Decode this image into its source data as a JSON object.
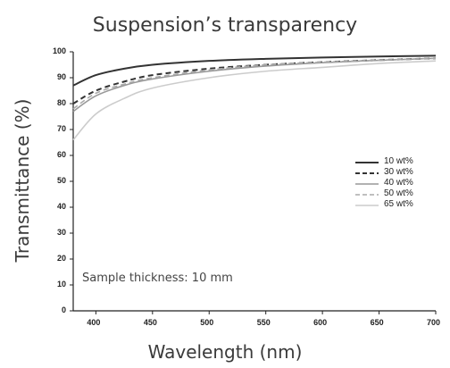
{
  "chart_data": {
    "type": "line",
    "title": "Suspension’s transparency",
    "xlabel": "Wavelength (nm)",
    "ylabel": "Transmittance (%)",
    "annotation": "Sample thickness: 10 mm",
    "xlim": [
      380,
      700
    ],
    "ylim": [
      0,
      100
    ],
    "xticks": [
      400,
      450,
      500,
      550,
      600,
      650,
      700
    ],
    "yticks": [
      0,
      10,
      20,
      30,
      40,
      50,
      60,
      70,
      80,
      90,
      100
    ],
    "ytick_labels": [
      "0",
      "10",
      "20",
      "30",
      "40",
      "50",
      "60",
      "70",
      "80",
      "90",
      "100"
    ],
    "legend_position": "right",
    "x": [
      380,
      400,
      425,
      450,
      500,
      550,
      600,
      650,
      700
    ],
    "series": [
      {
        "name": "10 wt%",
        "color": "#333333",
        "dash": "solid",
        "values": [
          87,
          91,
          93.5,
          95,
          96.5,
          97.3,
          97.8,
          98.2,
          98.5
        ]
      },
      {
        "name": "30 wt%",
        "color": "#333333",
        "dash": "dashed",
        "values": [
          80,
          85,
          88.5,
          91,
          93.5,
          95,
          96,
          96.8,
          97.5
        ]
      },
      {
        "name": "40 wt%",
        "color": "#999999",
        "dash": "solid",
        "values": [
          77,
          83,
          87,
          89.5,
          92.5,
          94.5,
          95.8,
          96.7,
          97.5
        ]
      },
      {
        "name": "50 wt%",
        "color": "#aaaaaa",
        "dash": "dashed",
        "values": [
          78,
          84,
          87.5,
          90,
          93,
          95,
          96,
          96.8,
          97.5
        ]
      },
      {
        "name": "65 wt%",
        "color": "#cccccc",
        "dash": "solid",
        "values": [
          66,
          76,
          82,
          86,
          90,
          92.5,
          94,
          95.5,
          96.5
        ]
      }
    ]
  }
}
